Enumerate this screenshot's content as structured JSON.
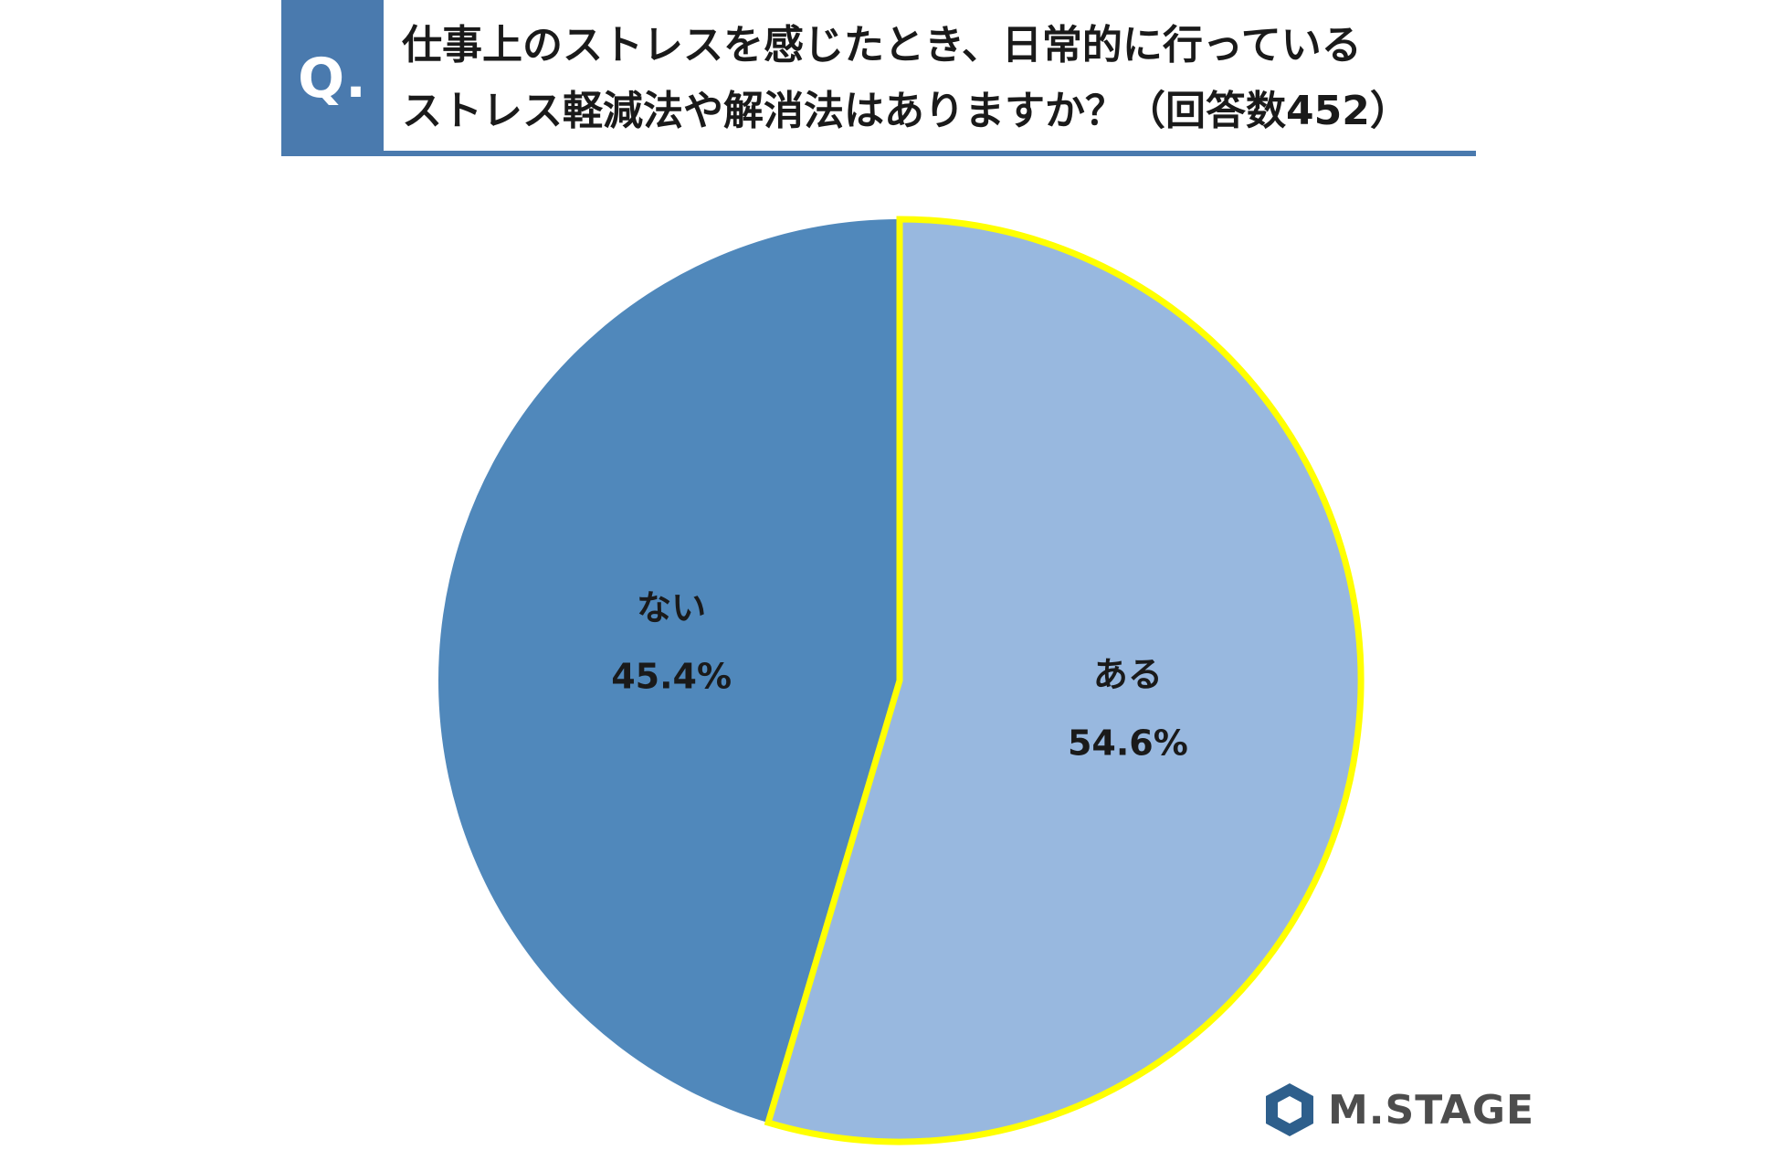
{
  "header": {
    "badge": "Q.",
    "title_lines": [
      "仕事上のストレスを感じたとき、日常的に行っている",
      "ストレス軽減法や解消法はありますか？（回答数452）"
    ]
  },
  "chart_data": {
    "type": "pie",
    "title": "仕事上のストレスを感じたとき、日常的に行っているストレス軽減法や解消法はありますか？（回答数452）",
    "slices": [
      {
        "label": "ある",
        "value": 54.6,
        "display": "54.6%",
        "color": "#98b8df",
        "highlight": "#ffff00"
      },
      {
        "label": "ない",
        "value": 45.4,
        "display": "45.4%",
        "color": "#5088bb"
      }
    ],
    "legend": "none"
  },
  "logo": {
    "text": "M.STAGE",
    "mark_color": "#2e5f8c"
  }
}
